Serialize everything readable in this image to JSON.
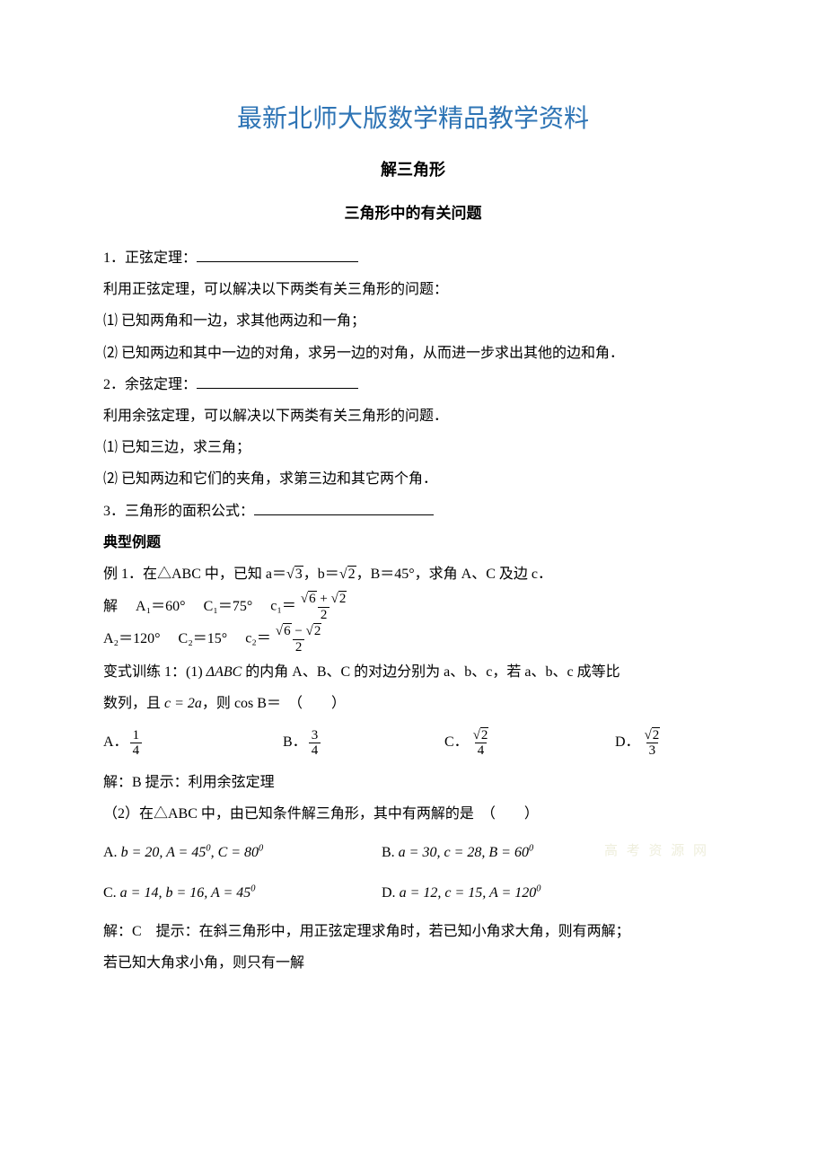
{
  "titles": {
    "main": "最新北师大版数学精品教学资料",
    "sub1": "解三角形",
    "sub2": "三角形中的有关问题"
  },
  "section1": {
    "h": "1．正弦定理：",
    "p1": "利用正弦定理，可以解决以下两类有关三角形的问题：",
    "p2": "⑴ 已知两角和一边，求其他两边和一角；",
    "p3": "⑵ 已知两边和其中一边的对角，求另一边的对角，从而进一步求出其他的边和角．"
  },
  "section2": {
    "h": "2．余弦定理：",
    "p1": "利用余弦定理，可以解决以下两类有关三角形的问题．",
    "p2": "⑴ 已知三边，求三角；",
    "p3": "⑵ 已知两边和它们的夹角，求第三边和其它两个角．"
  },
  "section3": {
    "h": "3．三角形的面积公式："
  },
  "examples_heading": "典型例题",
  "ex1": {
    "stem_a": "例 1．在△ABC 中，已知 a＝",
    "stem_b": "，b＝",
    "stem_c": "，B＝45°，求角 A、C 及边 c．",
    "sol_prefix": "解",
    "a1": "A₁＝60°",
    "c1": "C₁＝75°",
    "c1v_prefix": "c₁＝",
    "a2": "A₂＝120°",
    "c2": "C₂＝15°",
    "c2v_prefix": "c₂＝"
  },
  "v1": {
    "stem_a": "变式训练 1：(1) ",
    "stem_b": " 的内角 A、B、C 的对边分别为 a、b、c，若 a、b、c 成等比",
    "stem_c": "数列，且 ",
    "stem_d": "，则 ",
    "stem_e": "＝　（　　）",
    "abc": "ΔABC",
    "c2a": "c = 2a",
    "cosB": "cos B",
    "optA": "A．",
    "optB": "B．",
    "optC": "C．",
    "optD": "D．",
    "a_num": "1",
    "a_den": "4",
    "b_num": "3",
    "b_den": "4",
    "c_den": "4",
    "d_den": "3",
    "sol": "解：B 提示：利用余弦定理"
  },
  "v2": {
    "stem": "（2）在△ABC 中，由已知条件解三角形，其中有两解的是　（　　）",
    "optA_pre": "A. ",
    "optA": "b = 20, A = 45⁰, C = 80⁰",
    "optB_pre": "B. ",
    "optB": "a = 30, c = 28, B = 60⁰",
    "optC_pre": " C. ",
    "optC": "a = 14, b = 16, A = 45⁰",
    "optD_pre": "D.  ",
    "optD": "a = 12, c = 15, A = 120⁰",
    "sol1": "解：C　提示：在斜三角形中，用正弦定理求角时，若已知小角求大角，则有两解；",
    "sol2": "若已知大角求小角，则只有一解"
  },
  "colors": {
    "title": "#2e74b5",
    "text": "#000000",
    "bg": "#ffffff"
  },
  "watermark": "高 考 资 源 网"
}
